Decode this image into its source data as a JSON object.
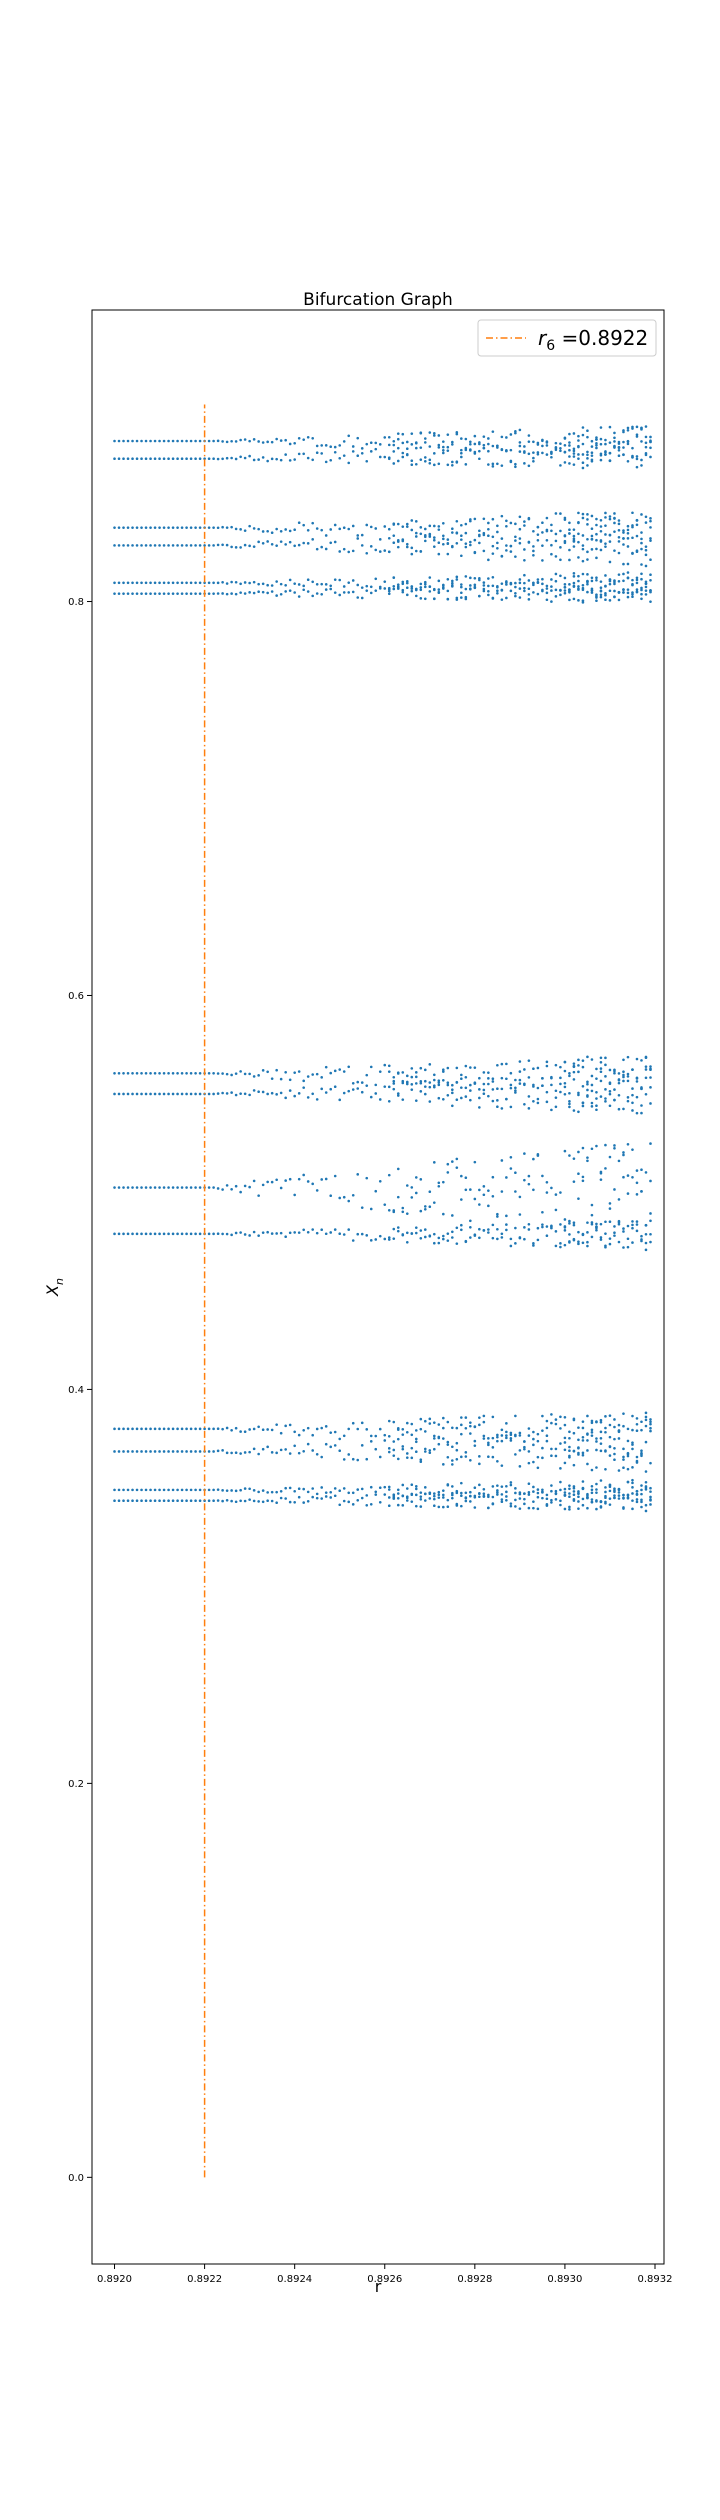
{
  "chart_data": {
    "type": "scatter",
    "title": "Bifurcation Graph",
    "xlabel": "r",
    "ylabel": "X_n",
    "xlim": [
      0.89195,
      0.89322
    ],
    "ylim": [
      -0.044,
      0.948
    ],
    "x_ticks": [
      0.892,
      0.8922,
      0.8924,
      0.8926,
      0.8928,
      0.893,
      0.8932
    ],
    "x_tick_labels": [
      "0.8920",
      "0.8922",
      "0.8924",
      "0.8926",
      "0.8928",
      "0.8930",
      "0.8932"
    ],
    "y_ticks": [
      0.0,
      0.2,
      0.4,
      0.6,
      0.8
    ],
    "y_tick_labels": [
      "0.0",
      "0.2",
      "0.4",
      "0.6",
      "0.8"
    ],
    "grid": false,
    "legend_position": "top-right",
    "series": [
      {
        "kind": "scatter",
        "color": "#1f77b4",
        "x_range": [
          0.892,
          0.89319
        ],
        "period_192_branches_at_r_0_8920": [
          0.3435,
          0.349,
          0.3685,
          0.38,
          0.479,
          0.5025,
          0.55,
          0.5605,
          0.804,
          0.8095,
          0.8285,
          0.8375,
          0.8725,
          0.8815
        ],
        "branch_spread_at_r_0_89319": [
          [
            0.34,
            0.353
          ],
          [
            0.36,
            0.385
          ],
          [
            0.469,
            0.485
          ],
          [
            0.475,
            0.525
          ],
          [
            0.542,
            0.566
          ],
          [
            0.801,
            0.814
          ],
          [
            0.819,
            0.842
          ],
          [
            0.872,
            0.889
          ]
        ]
      },
      {
        "kind": "vline",
        "name": "r_6 =0.8922",
        "name_base": "r",
        "name_sub": "6",
        "name_rest": " =0.8922",
        "color": "#ff7f0e",
        "x": 0.8922,
        "y_range": [
          0.0,
          0.9
        ]
      }
    ]
  }
}
